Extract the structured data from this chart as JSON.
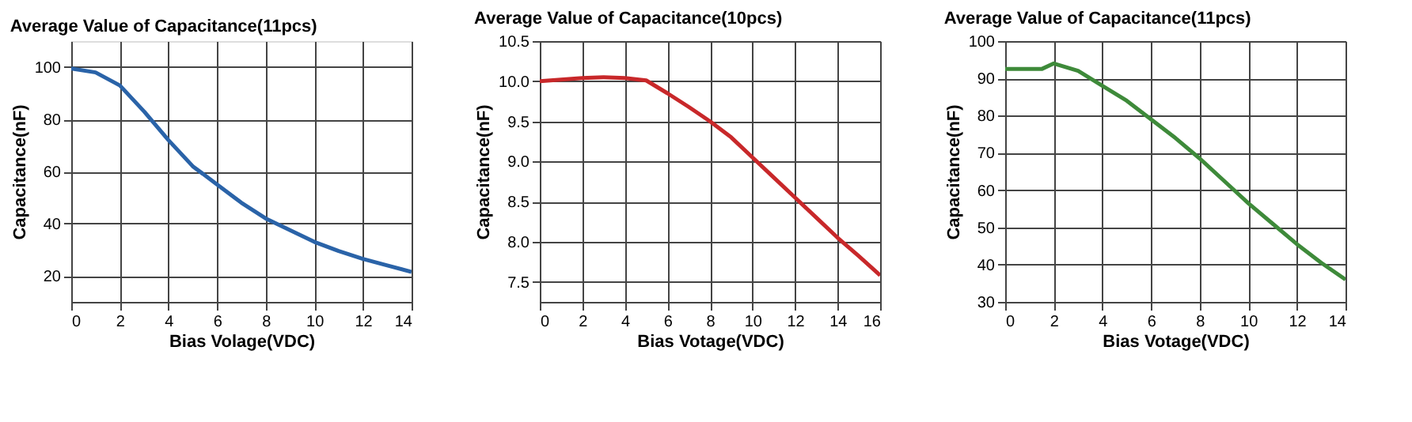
{
  "chart_data": [
    {
      "type": "line",
      "title": "Average Value of Capacitance(11pcs)",
      "xlabel": "Bias Volage(VDC)",
      "ylabel": "Capacitance(nF)",
      "x": [
        0,
        1,
        2,
        3,
        4,
        5,
        6,
        7,
        8,
        9,
        10,
        11,
        12,
        13,
        14
      ],
      "xlim": [
        0,
        14
      ],
      "xticks": [
        0,
        2,
        4,
        6,
        8,
        10,
        12,
        14
      ],
      "ylim": [
        10,
        110
      ],
      "yticks": [
        20,
        40,
        60,
        80,
        100
      ],
      "grid": true,
      "marker": "none",
      "line_style": "solid",
      "series": [
        {
          "color": "#2a63a8",
          "values": [
            99.5,
            98,
            93,
            83,
            72,
            62,
            55,
            48,
            42,
            37.5,
            33,
            29.5,
            26.5,
            24,
            21.5
          ]
        }
      ]
    },
    {
      "type": "line",
      "title": "Average Value of Capacitance(10pcs)",
      "xlabel": "Bias Votage(VDC)",
      "ylabel": "Capacitance(nF)",
      "x": [
        0,
        1,
        2,
        3,
        4,
        5,
        6,
        7,
        8,
        9,
        10,
        11,
        12,
        13,
        14,
        15,
        16
      ],
      "xlim": [
        0,
        16
      ],
      "xticks": [
        0,
        2,
        4,
        6,
        8,
        10,
        12,
        14,
        16
      ],
      "ylim": [
        7.25,
        10.5
      ],
      "yticks": [
        {
          "value": 7.5,
          "label": "7.5"
        },
        {
          "value": 8,
          "label": "8.0"
        },
        {
          "value": 8.5,
          "label": "8.5"
        },
        {
          "value": 9,
          "label": "9.0"
        },
        {
          "value": 9.5,
          "label": "9.5"
        },
        {
          "value": 10,
          "label": "10.0"
        },
        {
          "value": 10.5,
          "label": "10.5"
        }
      ],
      "grid": true,
      "marker": "none",
      "line_style": "solid",
      "series": [
        {
          "color": "#c8282a",
          "values": [
            10.0,
            10.02,
            10.04,
            10.05,
            10.04,
            10.01,
            9.85,
            9.68,
            9.5,
            9.3,
            9.05,
            8.8,
            8.55,
            8.3,
            8.05,
            7.82,
            7.58
          ]
        }
      ]
    },
    {
      "type": "line",
      "title": "Average Value of Capacitance(11pcs)",
      "xlabel": "Bias Votage(VDC)",
      "ylabel": "Capacitance(nF)",
      "x": [
        0,
        1,
        1.5,
        2,
        3,
        4,
        5,
        6,
        7,
        8,
        9,
        10,
        11,
        12,
        13,
        14
      ],
      "xlim": [
        0,
        14
      ],
      "xticks": [
        0,
        2,
        4,
        6,
        8,
        10,
        12,
        14
      ],
      "ylim": [
        30,
        100
      ],
      "yticks": [
        30,
        40,
        50,
        60,
        70,
        80,
        90,
        100
      ],
      "grid": true,
      "marker": "none",
      "line_style": "solid",
      "series": [
        {
          "color": "#3e8a3a",
          "values": [
            92.5,
            92.5,
            92.5,
            94,
            92,
            88,
            84,
            79,
            74,
            68.5,
            62.5,
            56.5,
            51,
            45.5,
            40.5,
            36
          ]
        }
      ]
    }
  ]
}
